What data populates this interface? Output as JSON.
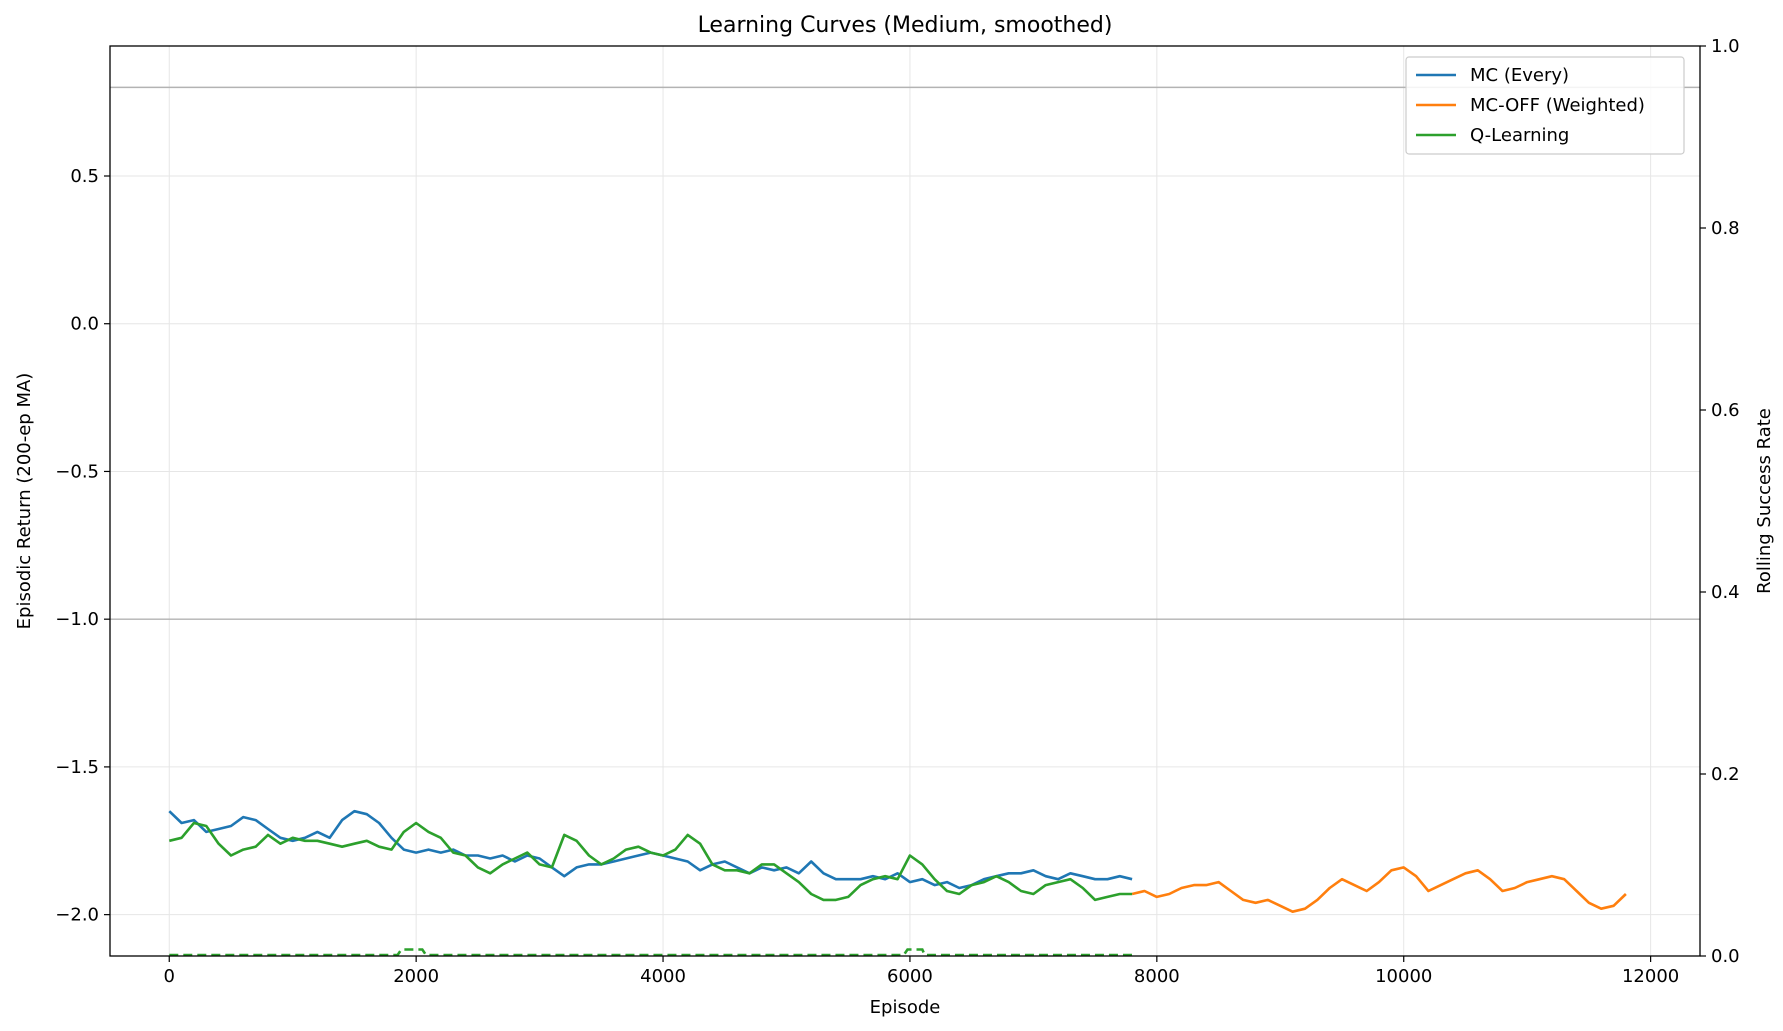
{
  "chart_data": {
    "type": "line",
    "title": "Learning Curves (Medium, smoothed)",
    "xlabel": "Episode",
    "ylabel": "Episodic Return (200-ep MA)",
    "y2label": "Rolling Success Rate",
    "xlim": [
      -480,
      12400
    ],
    "ylim": [
      -2.14,
      0.94
    ],
    "y2lim": [
      0.0,
      1.0
    ],
    "xticks": [
      0,
      2000,
      4000,
      6000,
      8000,
      10000,
      12000
    ],
    "xtick_labels": [
      "0",
      "2000",
      "4000",
      "6000",
      "8000",
      "10000",
      "12000"
    ],
    "yticks": [
      0.5,
      0.0,
      -0.5,
      -1.0,
      -1.5,
      -2.0
    ],
    "ytick_labels": [
      "0.5",
      "0.0",
      "−0.5",
      "−1.0",
      "−1.5",
      "−2.0"
    ],
    "y2ticks": [
      0.0,
      0.2,
      0.4,
      0.6,
      0.8,
      1.0
    ],
    "y2tick_labels": [
      "0.0",
      "0.2",
      "0.4",
      "0.6",
      "0.8",
      "1.0"
    ],
    "grid": true,
    "legend_position": "top-right",
    "reference_lines_y": [
      0.8,
      -1.0
    ],
    "series": [
      {
        "name": "MC (Every)",
        "color": "#1f77b4",
        "x": [
          0,
          100,
          200,
          300,
          400,
          500,
          600,
          700,
          800,
          900,
          1000,
          1100,
          1200,
          1300,
          1400,
          1500,
          1600,
          1700,
          1800,
          1900,
          2000,
          2100,
          2200,
          2300,
          2400,
          2500,
          2600,
          2700,
          2800,
          2900,
          3000,
          3100,
          3200,
          3300,
          3400,
          3500,
          3600,
          3700,
          3800,
          3900,
          4000,
          4100,
          4200,
          4300,
          4400,
          4500,
          4600,
          4700,
          4800,
          4900,
          5000,
          5100,
          5200,
          5300,
          5400,
          5500,
          5600,
          5700,
          5800,
          5900,
          6000,
          6100,
          6200,
          6300,
          6400,
          6500,
          6600,
          6700,
          6800,
          6900,
          7000,
          7100,
          7200,
          7300,
          7400,
          7500,
          7600,
          7700,
          7800
        ],
        "y": [
          -1.65,
          -1.69,
          -1.68,
          -1.72,
          -1.71,
          -1.7,
          -1.67,
          -1.68,
          -1.71,
          -1.74,
          -1.75,
          -1.74,
          -1.72,
          -1.74,
          -1.68,
          -1.65,
          -1.66,
          -1.69,
          -1.74,
          -1.78,
          -1.79,
          -1.78,
          -1.79,
          -1.78,
          -1.8,
          -1.8,
          -1.81,
          -1.8,
          -1.82,
          -1.8,
          -1.81,
          -1.84,
          -1.87,
          -1.84,
          -1.83,
          -1.83,
          -1.82,
          -1.81,
          -1.8,
          -1.79,
          -1.8,
          -1.81,
          -1.82,
          -1.85,
          -1.83,
          -1.82,
          -1.84,
          -1.86,
          -1.84,
          -1.85,
          -1.84,
          -1.86,
          -1.82,
          -1.86,
          -1.88,
          -1.88,
          -1.88,
          -1.87,
          -1.88,
          -1.86,
          -1.89,
          -1.88,
          -1.9,
          -1.89,
          -1.91,
          -1.9,
          -1.88,
          -1.87,
          -1.86,
          -1.86,
          -1.85,
          -1.87,
          -1.88,
          -1.86,
          -1.87,
          -1.88,
          -1.88,
          -1.87,
          -1.88
        ]
      },
      {
        "name": "MC-OFF (Weighted)",
        "color": "#ff7f0e",
        "x": [
          7800,
          7900,
          8000,
          8100,
          8200,
          8300,
          8400,
          8500,
          8600,
          8700,
          8800,
          8900,
          9000,
          9100,
          9200,
          9300,
          9400,
          9500,
          9600,
          9700,
          9800,
          9900,
          10000,
          10100,
          10200,
          10300,
          10400,
          10500,
          10600,
          10700,
          10800,
          10900,
          11000,
          11100,
          11200,
          11300,
          11400,
          11500,
          11600,
          11700,
          11800
        ],
        "y": [
          -1.93,
          -1.92,
          -1.94,
          -1.93,
          -1.91,
          -1.9,
          -1.9,
          -1.89,
          -1.92,
          -1.95,
          -1.96,
          -1.95,
          -1.97,
          -1.99,
          -1.98,
          -1.95,
          -1.91,
          -1.88,
          -1.9,
          -1.92,
          -1.89,
          -1.85,
          -1.84,
          -1.87,
          -1.92,
          -1.9,
          -1.88,
          -1.86,
          -1.85,
          -1.88,
          -1.92,
          -1.91,
          -1.89,
          -1.88,
          -1.87,
          -1.88,
          -1.92,
          -1.96,
          -1.98,
          -1.97,
          -1.93
        ]
      },
      {
        "name": "Q-Learning",
        "color": "#2ca02c",
        "x": [
          0,
          100,
          200,
          300,
          400,
          500,
          600,
          700,
          800,
          900,
          1000,
          1100,
          1200,
          1300,
          1400,
          1500,
          1600,
          1700,
          1800,
          1900,
          2000,
          2100,
          2200,
          2300,
          2400,
          2500,
          2600,
          2700,
          2800,
          2900,
          3000,
          3100,
          3200,
          3300,
          3400,
          3500,
          3600,
          3700,
          3800,
          3900,
          4000,
          4100,
          4200,
          4300,
          4400,
          4500,
          4600,
          4700,
          4800,
          4900,
          5000,
          5100,
          5200,
          5300,
          5400,
          5500,
          5600,
          5700,
          5800,
          5900,
          6000,
          6100,
          6200,
          6300,
          6400,
          6500,
          6600,
          6700,
          6800,
          6900,
          7000,
          7100,
          7200,
          7300,
          7400,
          7500,
          7600,
          7700,
          7800
        ],
        "y": [
          -1.75,
          -1.74,
          -1.69,
          -1.7,
          -1.76,
          -1.8,
          -1.78,
          -1.77,
          -1.73,
          -1.76,
          -1.74,
          -1.75,
          -1.75,
          -1.76,
          -1.77,
          -1.76,
          -1.75,
          -1.77,
          -1.78,
          -1.72,
          -1.69,
          -1.72,
          -1.74,
          -1.79,
          -1.8,
          -1.84,
          -1.86,
          -1.83,
          -1.81,
          -1.79,
          -1.83,
          -1.84,
          -1.73,
          -1.75,
          -1.8,
          -1.83,
          -1.81,
          -1.78,
          -1.77,
          -1.79,
          -1.8,
          -1.78,
          -1.73,
          -1.76,
          -1.83,
          -1.85,
          -1.85,
          -1.86,
          -1.83,
          -1.83,
          -1.86,
          -1.89,
          -1.93,
          -1.95,
          -1.95,
          -1.94,
          -1.9,
          -1.88,
          -1.87,
          -1.88,
          -1.8,
          -1.83,
          -1.88,
          -1.92,
          -1.93,
          -1.9,
          -1.89,
          -1.87,
          -1.89,
          -1.92,
          -1.93,
          -1.9,
          -1.89,
          -1.88,
          -1.91,
          -1.95,
          -1.94,
          -1.93,
          -1.93
        ]
      }
    ],
    "success_rate_series": {
      "color": "#2ca02c",
      "style": "dashed",
      "axis": "right",
      "x": [
        0,
        1850,
        1880,
        1920,
        2050,
        2080,
        2120,
        5950,
        5980,
        6020,
        6100,
        6120,
        6150,
        7800
      ],
      "y": [
        0.0,
        0.0,
        0.006,
        0.006,
        0.006,
        0.0,
        0.0,
        0.0,
        0.006,
        0.006,
        0.006,
        0.0,
        0.0,
        0.0
      ]
    }
  }
}
